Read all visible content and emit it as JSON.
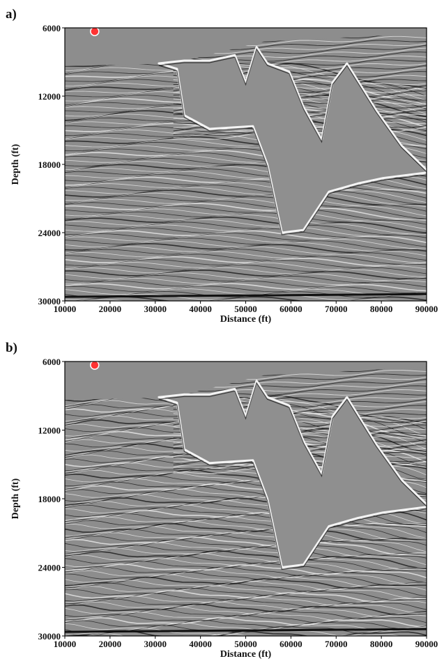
{
  "panels": [
    {
      "label": "a)",
      "xlabel": "Distance (ft)",
      "ylabel": "Depth (ft)",
      "xlim": [
        10000,
        90000
      ],
      "ylim": [
        6000,
        30000
      ],
      "xticks": [
        10000,
        20000,
        30000,
        40000,
        50000,
        60000,
        70000,
        80000,
        90000
      ],
      "yticks": [
        6000,
        12000,
        18000,
        24000,
        30000
      ]
    },
    {
      "label": "b)",
      "xlabel": "Distance (ft)",
      "ylabel": "Depth (ft)",
      "xlim": [
        10000,
        90000
      ],
      "ylim": [
        6000,
        30000
      ],
      "xticks": [
        10000,
        20000,
        30000,
        40000,
        50000,
        60000,
        70000,
        80000,
        90000
      ],
      "yticks": [
        6000,
        12000,
        18000,
        24000,
        30000
      ]
    }
  ]
}
